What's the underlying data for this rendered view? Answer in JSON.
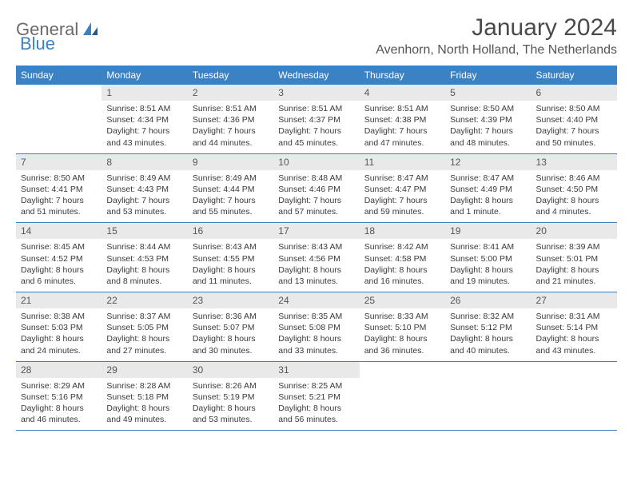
{
  "brand": {
    "part1": "General",
    "part2": "Blue"
  },
  "title": "January 2024",
  "location": "Avenhorn, North Holland, The Netherlands",
  "colors": {
    "header_bg": "#3b82c4",
    "header_text": "#ffffff",
    "daynum_bg": "#e9e9e9",
    "row_divider": "#3b82c4",
    "logo_gray": "#6a6a6a",
    "logo_blue": "#3b82c4",
    "body_text": "#3a3a3a",
    "page_bg": "#ffffff"
  },
  "typography": {
    "title_fontsize": 30,
    "location_fontsize": 16,
    "weekday_fontsize": 12,
    "daynum_fontsize": 12,
    "body_fontsize": 10.5
  },
  "dayHeaders": [
    "Sunday",
    "Monday",
    "Tuesday",
    "Wednesday",
    "Thursday",
    "Friday",
    "Saturday"
  ],
  "weeks": [
    [
      {
        "n": "",
        "sunrise": "",
        "sunset": "",
        "daylight": ""
      },
      {
        "n": "1",
        "sunrise": "8:51 AM",
        "sunset": "4:34 PM",
        "daylight": "7 hours and 43 minutes."
      },
      {
        "n": "2",
        "sunrise": "8:51 AM",
        "sunset": "4:36 PM",
        "daylight": "7 hours and 44 minutes."
      },
      {
        "n": "3",
        "sunrise": "8:51 AM",
        "sunset": "4:37 PM",
        "daylight": "7 hours and 45 minutes."
      },
      {
        "n": "4",
        "sunrise": "8:51 AM",
        "sunset": "4:38 PM",
        "daylight": "7 hours and 47 minutes."
      },
      {
        "n": "5",
        "sunrise": "8:50 AM",
        "sunset": "4:39 PM",
        "daylight": "7 hours and 48 minutes."
      },
      {
        "n": "6",
        "sunrise": "8:50 AM",
        "sunset": "4:40 PM",
        "daylight": "7 hours and 50 minutes."
      }
    ],
    [
      {
        "n": "7",
        "sunrise": "8:50 AM",
        "sunset": "4:41 PM",
        "daylight": "7 hours and 51 minutes."
      },
      {
        "n": "8",
        "sunrise": "8:49 AM",
        "sunset": "4:43 PM",
        "daylight": "7 hours and 53 minutes."
      },
      {
        "n": "9",
        "sunrise": "8:49 AM",
        "sunset": "4:44 PM",
        "daylight": "7 hours and 55 minutes."
      },
      {
        "n": "10",
        "sunrise": "8:48 AM",
        "sunset": "4:46 PM",
        "daylight": "7 hours and 57 minutes."
      },
      {
        "n": "11",
        "sunrise": "8:47 AM",
        "sunset": "4:47 PM",
        "daylight": "7 hours and 59 minutes."
      },
      {
        "n": "12",
        "sunrise": "8:47 AM",
        "sunset": "4:49 PM",
        "daylight": "8 hours and 1 minute."
      },
      {
        "n": "13",
        "sunrise": "8:46 AM",
        "sunset": "4:50 PM",
        "daylight": "8 hours and 4 minutes."
      }
    ],
    [
      {
        "n": "14",
        "sunrise": "8:45 AM",
        "sunset": "4:52 PM",
        "daylight": "8 hours and 6 minutes."
      },
      {
        "n": "15",
        "sunrise": "8:44 AM",
        "sunset": "4:53 PM",
        "daylight": "8 hours and 8 minutes."
      },
      {
        "n": "16",
        "sunrise": "8:43 AM",
        "sunset": "4:55 PM",
        "daylight": "8 hours and 11 minutes."
      },
      {
        "n": "17",
        "sunrise": "8:43 AM",
        "sunset": "4:56 PM",
        "daylight": "8 hours and 13 minutes."
      },
      {
        "n": "18",
        "sunrise": "8:42 AM",
        "sunset": "4:58 PM",
        "daylight": "8 hours and 16 minutes."
      },
      {
        "n": "19",
        "sunrise": "8:41 AM",
        "sunset": "5:00 PM",
        "daylight": "8 hours and 19 minutes."
      },
      {
        "n": "20",
        "sunrise": "8:39 AM",
        "sunset": "5:01 PM",
        "daylight": "8 hours and 21 minutes."
      }
    ],
    [
      {
        "n": "21",
        "sunrise": "8:38 AM",
        "sunset": "5:03 PM",
        "daylight": "8 hours and 24 minutes."
      },
      {
        "n": "22",
        "sunrise": "8:37 AM",
        "sunset": "5:05 PM",
        "daylight": "8 hours and 27 minutes."
      },
      {
        "n": "23",
        "sunrise": "8:36 AM",
        "sunset": "5:07 PM",
        "daylight": "8 hours and 30 minutes."
      },
      {
        "n": "24",
        "sunrise": "8:35 AM",
        "sunset": "5:08 PM",
        "daylight": "8 hours and 33 minutes."
      },
      {
        "n": "25",
        "sunrise": "8:33 AM",
        "sunset": "5:10 PM",
        "daylight": "8 hours and 36 minutes."
      },
      {
        "n": "26",
        "sunrise": "8:32 AM",
        "sunset": "5:12 PM",
        "daylight": "8 hours and 40 minutes."
      },
      {
        "n": "27",
        "sunrise": "8:31 AM",
        "sunset": "5:14 PM",
        "daylight": "8 hours and 43 minutes."
      }
    ],
    [
      {
        "n": "28",
        "sunrise": "8:29 AM",
        "sunset": "5:16 PM",
        "daylight": "8 hours and 46 minutes."
      },
      {
        "n": "29",
        "sunrise": "8:28 AM",
        "sunset": "5:18 PM",
        "daylight": "8 hours and 49 minutes."
      },
      {
        "n": "30",
        "sunrise": "8:26 AM",
        "sunset": "5:19 PM",
        "daylight": "8 hours and 53 minutes."
      },
      {
        "n": "31",
        "sunrise": "8:25 AM",
        "sunset": "5:21 PM",
        "daylight": "8 hours and 56 minutes."
      },
      {
        "n": "",
        "sunrise": "",
        "sunset": "",
        "daylight": ""
      },
      {
        "n": "",
        "sunrise": "",
        "sunset": "",
        "daylight": ""
      },
      {
        "n": "",
        "sunrise": "",
        "sunset": "",
        "daylight": ""
      }
    ]
  ],
  "labels": {
    "sunrise": "Sunrise:",
    "sunset": "Sunset:",
    "daylight": "Daylight:"
  }
}
